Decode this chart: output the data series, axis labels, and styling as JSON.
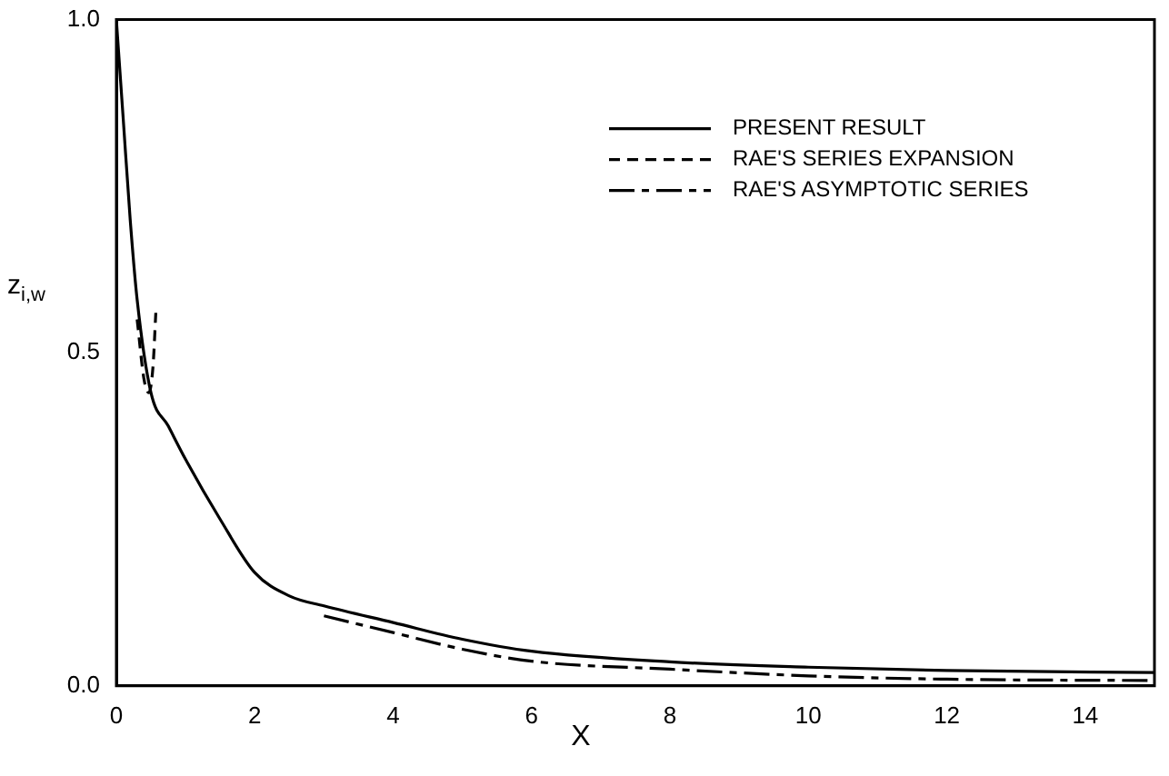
{
  "chart_data": {
    "type": "line",
    "xlabel": "X",
    "ylabel": "z$_{i,w}$",
    "xlim": [
      0,
      15
    ],
    "xticks": [
      0,
      2,
      4,
      6,
      8,
      10,
      12,
      14
    ],
    "ylim": [
      0,
      1
    ],
    "yticks": [
      {
        "value": 0,
        "label": "0.0"
      },
      {
        "value": 0.5,
        "label": "0.5"
      },
      {
        "value": 1,
        "label": "1.0"
      }
    ],
    "grid": false,
    "legend": "top right",
    "marker": "none",
    "series": [
      {
        "name": "PRESENT RESULT",
        "color": "#000000",
        "line_style": "solid",
        "x": [
          0,
          0.1,
          0.2,
          0.3,
          0.5,
          0.75,
          1,
          1.5,
          2,
          2.5,
          3,
          4,
          5,
          6,
          8,
          10,
          12,
          15
        ],
        "values": [
          1,
          0.85,
          0.7,
          0.58,
          0.44,
          0.39,
          0.34,
          0.25,
          0.17,
          0.135,
          0.12,
          0.095,
          0.07,
          0.052,
          0.036,
          0.028,
          0.023,
          0.02
        ]
      },
      {
        "name": "RAE'S SERIES EXPANSION",
        "color": "#000000",
        "line_style": "dashed",
        "x": [
          0.3,
          0.4,
          0.47,
          0.53,
          0.57
        ],
        "values": [
          0.55,
          0.46,
          0.44,
          0.48,
          0.56
        ]
      },
      {
        "name": "RAE'S ASYMPTOTIC SERIES",
        "color": "#000000",
        "line_style": "dashdot",
        "x": [
          3,
          4,
          5,
          6,
          8,
          10,
          12,
          15
        ],
        "values": [
          0.105,
          0.08,
          0.055,
          0.037,
          0.025,
          0.015,
          0.01,
          0.008
        ]
      }
    ]
  }
}
